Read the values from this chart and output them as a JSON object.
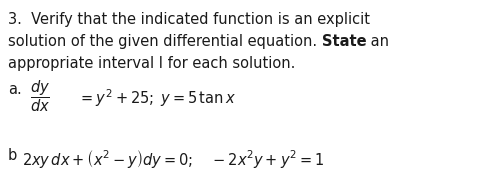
{
  "background_color": "#ffffff",
  "text_color": "#1a1a1a",
  "fig_width": 4.86,
  "fig_height": 1.96,
  "dpi": 100,
  "fontsize": 10.5,
  "line1": "3.  Verify that the indicated function is an explicit",
  "line2_pre": "solution of the given differential equation. ",
  "line2_bold": "State",
  "line2_post": " an",
  "line3": "appropriate interval I for each solution.",
  "label_a": "a.",
  "part_a_rest": "$= y^{2}+25;\\; y = 5\\,\\tan x$",
  "label_b": "b",
  "part_b_eq": "$2xy\\,dx + \\left(x^{2}-y\\right)dy = 0;\\quad -2x^{2}y+y^{2}=1$"
}
